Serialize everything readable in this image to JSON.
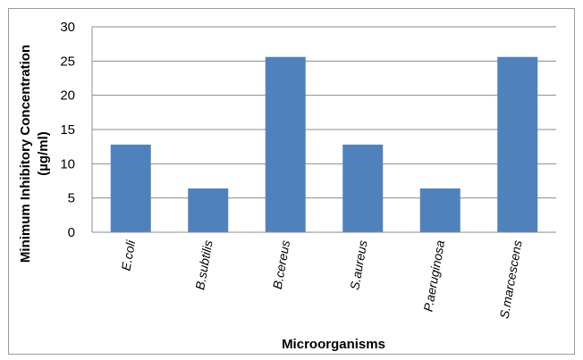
{
  "chart_data": {
    "type": "bar",
    "categories": [
      "E.coli",
      "B.subtilis",
      "B.cereus",
      "S.aureus",
      "P.aeruginosa",
      "S.marcescens"
    ],
    "values": [
      12.8,
      6.4,
      25.6,
      12.8,
      6.4,
      25.6
    ],
    "title": "",
    "xlabel": "Microorganisms",
    "ylabel_line1": "Minimum Inhibitory Concentration",
    "ylabel_line2": "(µg/ml)",
    "ylim": [
      0,
      30
    ],
    "yticks": [
      0,
      5,
      10,
      15,
      20,
      25,
      30
    ],
    "grid": true,
    "legend": "none",
    "colors": {
      "bar": "#4f81bd",
      "grid": "#8c8c8c",
      "axis": "#8c8c8c"
    }
  }
}
